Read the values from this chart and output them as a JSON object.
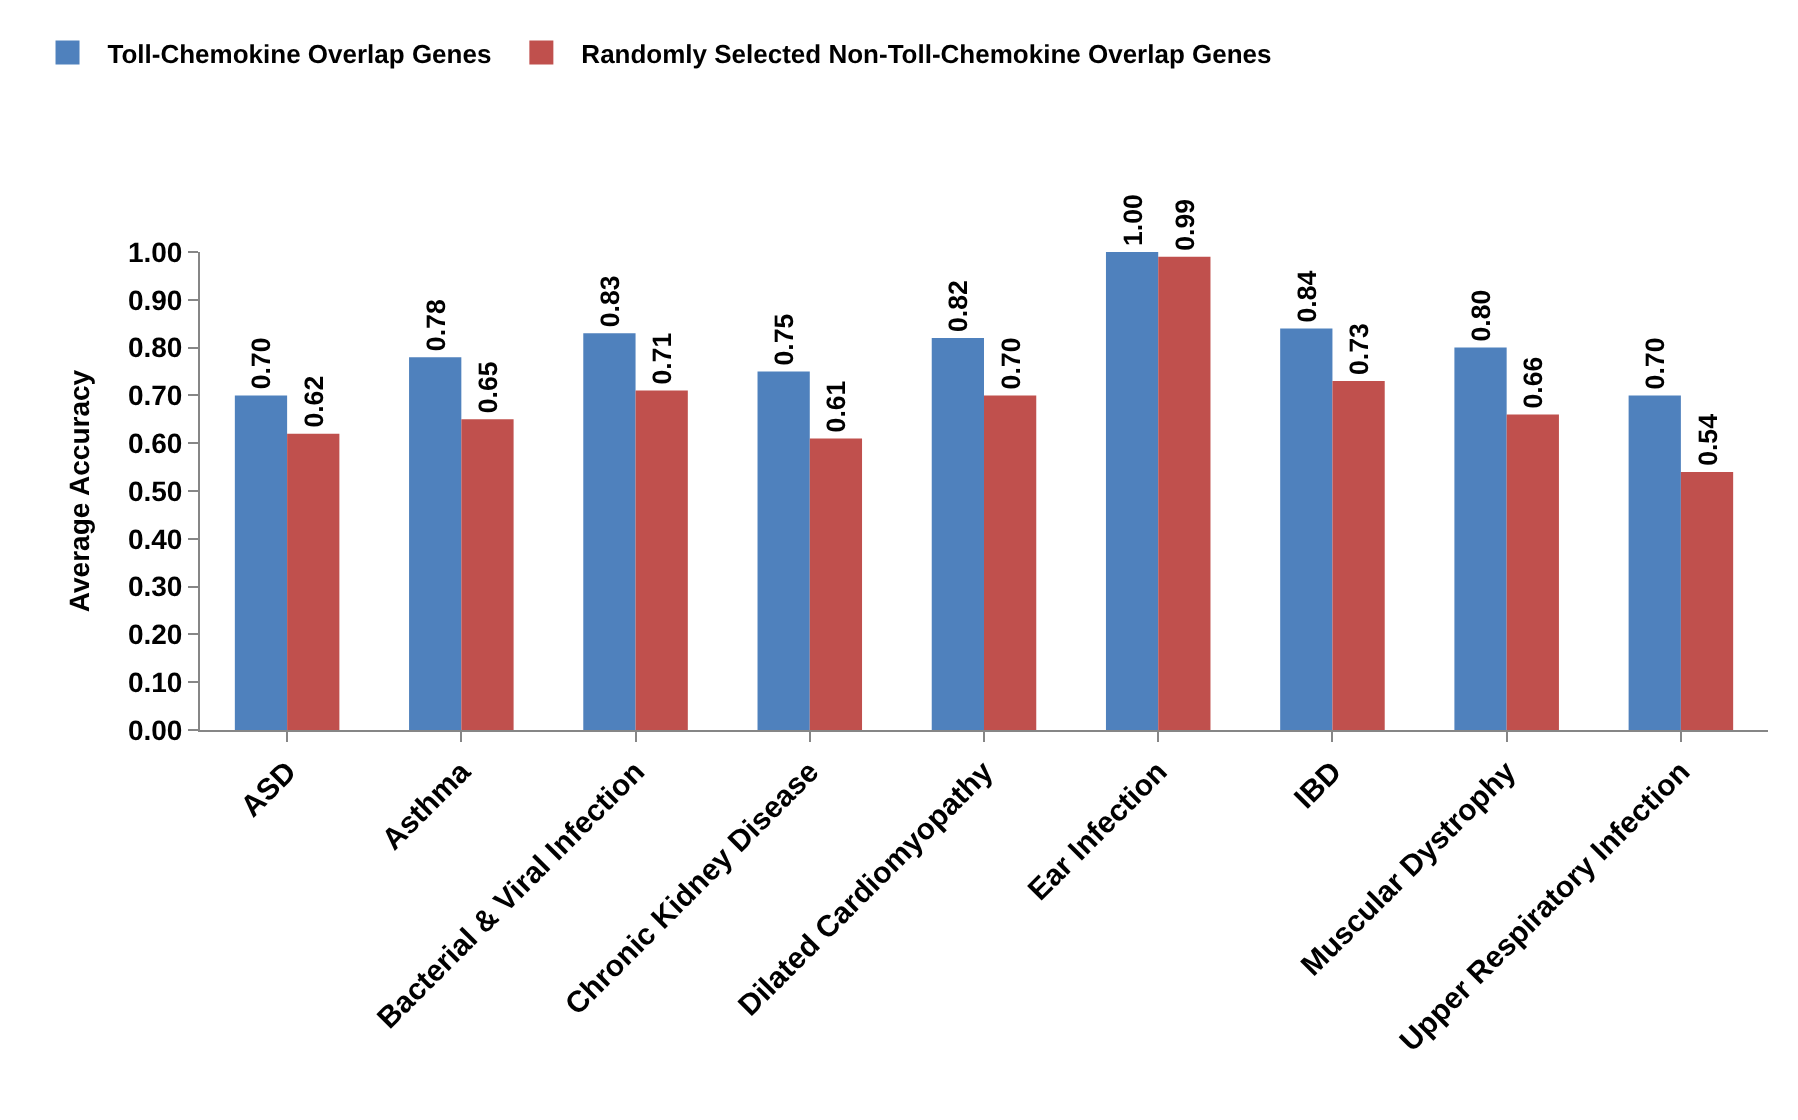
{
  "chart_data": {
    "type": "bar",
    "ylabel": "Average Accuracy",
    "categories": [
      "ASD",
      "Asthma",
      "Bacterial & Viral Infection",
      "Chronic Kidney Disease",
      "Dilated Cardiomyopathy",
      "Ear Infection",
      "IBD",
      "Muscular Dystrophy",
      "Upper Respiratory Infection"
    ],
    "series": [
      {
        "name": "Toll-Chemokine Overlap Genes",
        "color": "#4f81bd",
        "values": [
          0.7,
          0.78,
          0.83,
          0.75,
          0.82,
          1.0,
          0.84,
          0.8,
          0.7
        ],
        "value_labels": [
          "0.70",
          "0.78",
          "0.83",
          "0.75",
          "0.82",
          "1.00",
          "0.84",
          "0.80",
          "0.70"
        ]
      },
      {
        "name": "Randomly Selected Non-Toll-Chemokine Overlap Genes",
        "color": "#c0504d",
        "values": [
          0.62,
          0.65,
          0.71,
          0.61,
          0.7,
          0.99,
          0.73,
          0.66,
          0.54
        ],
        "value_labels": [
          "0.62",
          "0.65",
          "0.71",
          "0.61",
          "0.70",
          "0.99",
          "0.73",
          "0.66",
          "0.54"
        ]
      }
    ],
    "ylim": [
      0,
      1
    ],
    "yticks": [
      {
        "value": 0,
        "label": "0.00"
      },
      {
        "value": 0.1,
        "label": "0.10"
      },
      {
        "value": 0.2,
        "label": "0.20"
      },
      {
        "value": 0.3,
        "label": "0.30"
      },
      {
        "value": 0.4,
        "label": "0.40"
      },
      {
        "value": 0.5,
        "label": "0.50"
      },
      {
        "value": 0.6,
        "label": "0.60"
      },
      {
        "value": 0.7,
        "label": "0.70"
      },
      {
        "value": 0.8,
        "label": "0.80"
      },
      {
        "value": 0.9,
        "label": "0.90"
      },
      {
        "value": 1.0,
        "label": "1.00"
      }
    ],
    "legend": "top left"
  }
}
